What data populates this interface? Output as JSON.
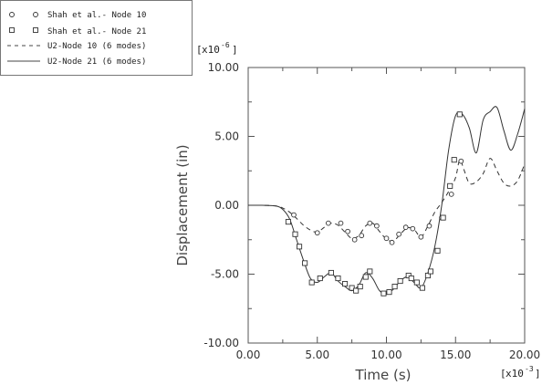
{
  "chart_data": {
    "type": "line",
    "xlabel": "Time (s)",
    "ylabel": "Displacement (in)",
    "x_multiplier": {
      "base": "x10",
      "exp": "-3"
    },
    "y_multiplier": {
      "base": "x10",
      "exp": "-6"
    },
    "xlim": [
      0.0,
      20.0
    ],
    "ylim": [
      -10.0,
      10.0
    ],
    "x_ticks": [
      "0.00",
      "5.00",
      "10.00",
      "15.00",
      "20.00"
    ],
    "y_ticks": [
      "-10.00",
      "-5.00",
      "0.00",
      "5.00",
      "10.00"
    ],
    "grid": false,
    "legend_position": "top-left, outside plot",
    "series": [
      {
        "name": "Shah et al.- Node 10",
        "style": "circle-markers",
        "x": [
          3.3,
          5.0,
          5.8,
          6.7,
          7.2,
          7.7,
          8.2,
          8.8,
          9.3,
          10.0,
          10.4,
          10.9,
          11.4,
          11.9,
          12.5,
          13.1,
          14.0,
          14.7,
          15.4
        ],
        "y": [
          -0.7,
          -2.0,
          -1.3,
          -1.3,
          -1.9,
          -2.5,
          -2.2,
          -1.3,
          -1.5,
          -2.4,
          -2.7,
          -2.1,
          -1.6,
          -1.7,
          -2.3,
          -1.5,
          -0.9,
          0.8,
          3.2
        ]
      },
      {
        "name": "Shah et al.- Node 21",
        "style": "square-markers",
        "x": [
          2.9,
          3.4,
          3.7,
          4.1,
          4.6,
          5.2,
          6.0,
          6.5,
          7.0,
          7.5,
          7.8,
          8.1,
          8.5,
          8.8,
          9.8,
          10.2,
          10.6,
          11.0,
          11.6,
          11.8,
          12.2,
          12.6,
          13.0,
          13.2,
          13.7,
          14.1,
          14.6,
          14.9,
          15.3
        ],
        "y": [
          -1.2,
          -2.1,
          -3.0,
          -4.2,
          -5.6,
          -5.3,
          -4.9,
          -5.3,
          -5.7,
          -6.0,
          -6.2,
          -5.9,
          -5.2,
          -4.8,
          -6.4,
          -6.3,
          -5.9,
          -5.5,
          -5.1,
          -5.3,
          -5.6,
          -6.0,
          -5.1,
          -4.8,
          -3.3,
          -0.9,
          1.4,
          3.3,
          6.6
        ]
      },
      {
        "name": "U2-Node 10 (6 modes)",
        "style": "dashed",
        "x": [
          0.0,
          1.0,
          2.0,
          2.5,
          3.0,
          3.5,
          4.0,
          4.5,
          5.0,
          5.5,
          6.0,
          6.5,
          7.0,
          7.5,
          8.0,
          8.5,
          9.0,
          9.5,
          10.0,
          10.5,
          11.0,
          11.5,
          12.0,
          12.5,
          13.0,
          13.5,
          14.0,
          14.5,
          15.0,
          15.3,
          15.6,
          16.0,
          16.5,
          17.0,
          17.5,
          18.0,
          18.5,
          19.0,
          19.5,
          20.0
        ],
        "y": [
          0.0,
          0.0,
          -0.05,
          -0.2,
          -0.5,
          -0.95,
          -1.45,
          -1.8,
          -1.95,
          -1.6,
          -1.3,
          -1.45,
          -1.95,
          -2.4,
          -2.2,
          -1.5,
          -1.3,
          -1.9,
          -2.45,
          -2.6,
          -2.1,
          -1.65,
          -1.75,
          -2.3,
          -1.5,
          -0.5,
          0.2,
          1.0,
          2.0,
          3.3,
          2.6,
          1.6,
          1.7,
          2.3,
          3.4,
          2.5,
          1.6,
          1.4,
          1.8,
          3.0
        ]
      },
      {
        "name": "U2-Node 21 (6 modes)",
        "style": "solid",
        "x": [
          0.0,
          1.0,
          2.0,
          2.5,
          3.0,
          3.5,
          4.0,
          4.5,
          5.0,
          5.5,
          6.0,
          6.5,
          7.0,
          7.5,
          8.0,
          8.5,
          9.0,
          9.5,
          10.0,
          10.5,
          11.0,
          11.5,
          12.0,
          12.5,
          13.0,
          13.5,
          14.0,
          14.5,
          15.0,
          15.5,
          16.0,
          16.5,
          17.0,
          17.5,
          18.0,
          18.5,
          19.0,
          19.5,
          20.0
        ],
        "y": [
          0.0,
          0.0,
          -0.05,
          -0.3,
          -1.0,
          -2.5,
          -4.0,
          -5.3,
          -5.6,
          -5.2,
          -4.9,
          -5.5,
          -5.9,
          -6.2,
          -5.8,
          -4.9,
          -5.3,
          -6.2,
          -6.4,
          -6.1,
          -5.5,
          -5.2,
          -5.6,
          -6.0,
          -4.9,
          -3.0,
          0.0,
          4.0,
          6.5,
          6.6,
          5.6,
          3.8,
          6.2,
          6.8,
          7.1,
          5.4,
          4.0,
          5.2,
          7.0
        ]
      }
    ]
  }
}
